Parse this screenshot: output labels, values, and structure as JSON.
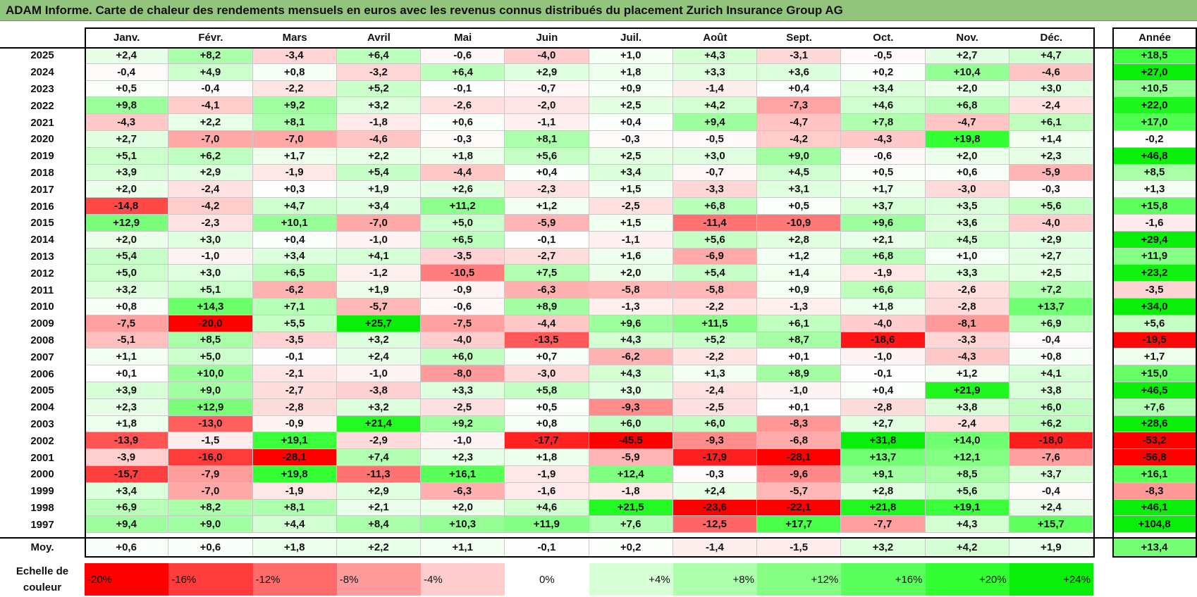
{
  "title": "ADAM Informe. Carte de chaleur des rendements mensuels en euros avec les revenus connus distribués du placement Zurich Insurance Group AG",
  "chart_data": {
    "type": "heatmap",
    "columns": [
      "Janv.",
      "Févr.",
      "Mars",
      "Avril",
      "Mai",
      "Juin",
      "Juil.",
      "Août",
      "Sept.",
      "Oct.",
      "Nov.",
      "Déc."
    ],
    "year_column_label": "Année",
    "rows": [
      {
        "year": "2025",
        "values": [
          "+2,4",
          "+8,2",
          "-3,4",
          "+6,4",
          "-0,6",
          "-4,0",
          "+1,0",
          "+4,3",
          "-3,1",
          "-0,5",
          "+2,7",
          "+4,7"
        ],
        "annual": "+18,5"
      },
      {
        "year": "2024",
        "values": [
          "-0,4",
          "+4,9",
          "+0,8",
          "-3,2",
          "+6,4",
          "+2,9",
          "+1,8",
          "+3,3",
          "+3,6",
          "+0,2",
          "+10,4",
          "-4,6"
        ],
        "annual": "+27,0"
      },
      {
        "year": "2023",
        "values": [
          "+0,5",
          "-0,4",
          "-2,2",
          "+5,2",
          "-0,1",
          "-0,7",
          "+0,9",
          "-1,4",
          "+0,4",
          "+3,4",
          "+2,0",
          "+3,0"
        ],
        "annual": "+10,5"
      },
      {
        "year": "2022",
        "values": [
          "+9,8",
          "-4,1",
          "+9,2",
          "+3,2",
          "-2,6",
          "-2,0",
          "+2,5",
          "+4,2",
          "-7,3",
          "+4,6",
          "+6,8",
          "-2,4"
        ],
        "annual": "+22,0"
      },
      {
        "year": "2021",
        "values": [
          "-4,3",
          "+2,2",
          "+8,1",
          "-1,8",
          "+0,6",
          "-1,1",
          "+0,4",
          "+9,4",
          "-4,7",
          "+7,8",
          "-4,7",
          "+6,1"
        ],
        "annual": "+17,0"
      },
      {
        "year": "2020",
        "values": [
          "+2,7",
          "-7,0",
          "-7,0",
          "-4,6",
          "-0,3",
          "+8,1",
          "-0,3",
          "-0,5",
          "-4,2",
          "-4,3",
          "+19,8",
          "+1,4"
        ],
        "annual": "-0,2"
      },
      {
        "year": "2019",
        "values": [
          "+5,1",
          "+6,2",
          "+1,7",
          "+2,2",
          "+1,8",
          "+5,6",
          "+2,5",
          "+3,0",
          "+9,0",
          "-0,6",
          "+2,0",
          "+2,3"
        ],
        "annual": "+46,8"
      },
      {
        "year": "2018",
        "values": [
          "+3,9",
          "+2,9",
          "-1,9",
          "+5,4",
          "-4,4",
          "+0,4",
          "+3,4",
          "-0,7",
          "+4,5",
          "+0,5",
          "+0,6",
          "-5,9"
        ],
        "annual": "+8,5"
      },
      {
        "year": "2017",
        "values": [
          "+2,0",
          "-2,4",
          "+0,3",
          "+1,9",
          "+2,6",
          "-2,3",
          "+1,5",
          "-3,3",
          "+3,1",
          "+1,7",
          "-3,0",
          "-0,3"
        ],
        "annual": "+1,3"
      },
      {
        "year": "2016",
        "values": [
          "-14,8",
          "-4,2",
          "+4,7",
          "+3,4",
          "+11,2",
          "+1,2",
          "-2,5",
          "+6,8",
          "+0,5",
          "+3,7",
          "+3,5",
          "+5,6"
        ],
        "annual": "+15,8"
      },
      {
        "year": "2015",
        "values": [
          "+12,9",
          "-2,3",
          "+10,1",
          "-7,0",
          "+5,0",
          "-5,9",
          "+1,5",
          "-11,4",
          "-10,9",
          "+9,6",
          "+3,6",
          "-4,0"
        ],
        "annual": "-1,6"
      },
      {
        "year": "2014",
        "values": [
          "+2,0",
          "+3,0",
          "+0,4",
          "-1,0",
          "+6,5",
          "-0,1",
          "-1,1",
          "+5,6",
          "+2,8",
          "+2,1",
          "+4,5",
          "+2,9"
        ],
        "annual": "+29,4"
      },
      {
        "year": "2013",
        "values": [
          "+5,4",
          "-1,0",
          "+3,4",
          "+4,1",
          "-3,5",
          "-2,7",
          "+1,6",
          "-6,9",
          "+1,2",
          "+6,8",
          "+1,0",
          "+2,7"
        ],
        "annual": "+11,9"
      },
      {
        "year": "2012",
        "values": [
          "+5,0",
          "+3,0",
          "+6,5",
          "-1,2",
          "-10,5",
          "+7,5",
          "+2,0",
          "+5,4",
          "+1,4",
          "-1,9",
          "+3,3",
          "+2,5"
        ],
        "annual": "+23,2"
      },
      {
        "year": "2011",
        "values": [
          "+3,2",
          "+5,1",
          "-6,2",
          "+1,9",
          "-0,9",
          "-6,3",
          "-5,8",
          "-5,8",
          "+0,9",
          "+6,6",
          "-2,6",
          "+7,2"
        ],
        "annual": "-3,5"
      },
      {
        "year": "2010",
        "values": [
          "+0,8",
          "+14,3",
          "+7,1",
          "-5,7",
          "-0,6",
          "+8,9",
          "-1,3",
          "-2,2",
          "-1,3",
          "+1,8",
          "-2,8",
          "+13,7"
        ],
        "annual": "+34,0"
      },
      {
        "year": "2009",
        "values": [
          "-7,5",
          "-20,0",
          "+5,5",
          "+25,7",
          "-7,5",
          "-4,4",
          "+9,6",
          "+11,5",
          "+6,1",
          "-4,0",
          "-8,1",
          "+6,9"
        ],
        "annual": "+5,6"
      },
      {
        "year": "2008",
        "values": [
          "-5,1",
          "+8,5",
          "-3,5",
          "+3,2",
          "-4,0",
          "-13,5",
          "+4,3",
          "+5,2",
          "+8,7",
          "-18,6",
          "-3,3",
          "-0,4"
        ],
        "annual": "-19,5"
      },
      {
        "year": "2007",
        "values": [
          "+1,1",
          "+5,0",
          "-0,1",
          "+2,4",
          "+6,0",
          "+0,7",
          "-6,2",
          "-2,2",
          "+0,1",
          "-1,0",
          "-4,3",
          "+0,8"
        ],
        "annual": "+1,7"
      },
      {
        "year": "2006",
        "values": [
          "+0,1",
          "+10,0",
          "-2,1",
          "-1,0",
          "-8,0",
          "-3,0",
          "+4,3",
          "+1,3",
          "+8,9",
          "-0,1",
          "+1,2",
          "+4,1"
        ],
        "annual": "+15,0"
      },
      {
        "year": "2005",
        "values": [
          "+3,9",
          "+9,0",
          "-2,7",
          "-3,8",
          "+3,3",
          "+5,8",
          "+3,0",
          "-2,4",
          "-1,0",
          "+0,4",
          "+21,9",
          "+3,8"
        ],
        "annual": "+46,5"
      },
      {
        "year": "2004",
        "values": [
          "+2,3",
          "+12,9",
          "-2,8",
          "+3,2",
          "-2,5",
          "+0,5",
          "-9,3",
          "-2,5",
          "+0,1",
          "-2,8",
          "+3,8",
          "+6,0"
        ],
        "annual": "+7,6"
      },
      {
        "year": "2003",
        "values": [
          "+1,8",
          "-13,0",
          "-0,9",
          "+21,4",
          "+9,2",
          "+0,8",
          "+6,0",
          "+6,0",
          "-8,3",
          "+2,7",
          "-2,4",
          "+6,2"
        ],
        "annual": "+28,6"
      },
      {
        "year": "2002",
        "values": [
          "-13,9",
          "-1,5",
          "+19,1",
          "-2,9",
          "-1,0",
          "-17,7",
          "-45,5",
          "-9,3",
          "-6,8",
          "+31,8",
          "+14,0",
          "-18,0"
        ],
        "annual": "-53,2"
      },
      {
        "year": "2001",
        "values": [
          "-3,9",
          "-16,0",
          "-28,1",
          "+7,4",
          "+2,3",
          "+1,8",
          "-5,9",
          "-17,9",
          "-28,1",
          "+13,7",
          "+12,1",
          "-7,6"
        ],
        "annual": "-56,8"
      },
      {
        "year": "2000",
        "values": [
          "-15,7",
          "-7,9",
          "+19,8",
          "-11,3",
          "+16,1",
          "-1,9",
          "+12,4",
          "-0,3",
          "-9,6",
          "+9,1",
          "+8,5",
          "+3,7"
        ],
        "annual": "+16,1"
      },
      {
        "year": "1999",
        "values": [
          "+3,4",
          "-7,0",
          "-1,9",
          "+2,9",
          "-6,3",
          "-1,6",
          "-1,8",
          "+2,4",
          "-5,7",
          "+2,8",
          "+5,6",
          "-0,4"
        ],
        "annual": "-8,3"
      },
      {
        "year": "1998",
        "values": [
          "+6,9",
          "+8,2",
          "+8,1",
          "+2,1",
          "+2,0",
          "+4,6",
          "+21,5",
          "-23,6",
          "-22,1",
          "+21,8",
          "+19,1",
          "+2,4"
        ],
        "annual": "+46,1"
      },
      {
        "year": "1997",
        "values": [
          "+9,4",
          "+9,0",
          "+4,4",
          "+8,4",
          "+10,3",
          "+11,9",
          "+7,6",
          "-12,5",
          "+17,7",
          "-7,7",
          "+4,3",
          "+15,7"
        ],
        "annual": "+104,8"
      }
    ],
    "average": {
      "label": "Moy.",
      "values": [
        "+0,6",
        "+0,6",
        "+1,8",
        "+2,2",
        "+1,1",
        "-0,1",
        "+0,2",
        "-1,4",
        "-1,5",
        "+3,2",
        "+4,2",
        "+1,9"
      ],
      "annual": "+13,4"
    },
    "color_scale": {
      "label": "Echelle de couleur",
      "stops": [
        {
          "label": "-20%",
          "value": -20,
          "color": "#ff0000"
        },
        {
          "label": "-16%",
          "value": -16,
          "color": "#ff3b3b"
        },
        {
          "label": "-12%",
          "value": -12,
          "color": "#ff6b6b"
        },
        {
          "label": "-8%",
          "value": -8,
          "color": "#ff9b9b"
        },
        {
          "label": "-4%",
          "value": -4,
          "color": "#ffcdcd"
        },
        {
          "label": "0%",
          "value": 0,
          "color": "#ffffff"
        },
        {
          "label": "+4%",
          "value": 4,
          "color": "#d6ffd6"
        },
        {
          "label": "+8%",
          "value": 8,
          "color": "#adffad"
        },
        {
          "label": "+12%",
          "value": 12,
          "color": "#84ff84"
        },
        {
          "label": "+16%",
          "value": 16,
          "color": "#5bff5b"
        },
        {
          "label": "+20%",
          "value": 20,
          "color": "#32ff32"
        },
        {
          "label": "+24%",
          "value": 24,
          "color": "#09ef09"
        }
      ]
    }
  }
}
